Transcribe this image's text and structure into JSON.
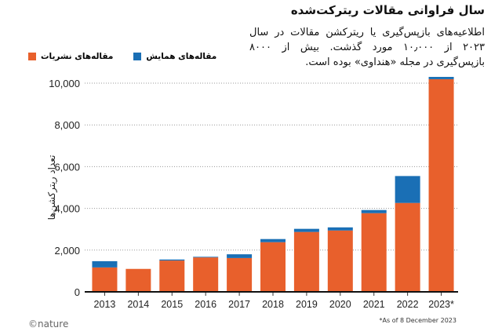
{
  "title": "سال فراوانی مقالات ریترکت‌شده",
  "subtitle": "اطلاعیه‌های بازپس‌گیری یا ریترکشن مقالات در سال ۲۰۲۳ از ۱۰٫۰۰۰ مورد گذشت. بیش از ۸۰۰۰ بازپس‌گیری در مجله «هنداوی» بوده است.",
  "logo": "©nature",
  "note": "*As of 8 December 2023",
  "chart_data": {
    "type": "bar",
    "stacked": true,
    "categories": [
      "2013",
      "2014",
      "2015",
      "2016",
      "2017",
      "2018",
      "2019",
      "2020",
      "2021",
      "2022",
      "2023*"
    ],
    "series": [
      {
        "name": "مقاله‌های نشریات",
        "color": "#e8602c",
        "values": [
          1170,
          1100,
          1500,
          1650,
          1620,
          2380,
          2870,
          2940,
          3770,
          4260,
          10190
        ]
      },
      {
        "name": "مقاله‌های همایش",
        "color": "#1a6fb5",
        "values": [
          300,
          0,
          50,
          30,
          180,
          150,
          150,
          150,
          150,
          1290,
          110
        ]
      }
    ],
    "ylabel": "تعداد ریترکشن‌ها",
    "ylim": [
      0,
      10000
    ],
    "yticks": [
      0,
      2000,
      4000,
      6000,
      8000,
      10000
    ],
    "ytick_labels": [
      "0",
      "2,000",
      "4,000",
      "6,000",
      "8,000",
      "10,000"
    ],
    "grid": true,
    "legend": "top-left"
  }
}
